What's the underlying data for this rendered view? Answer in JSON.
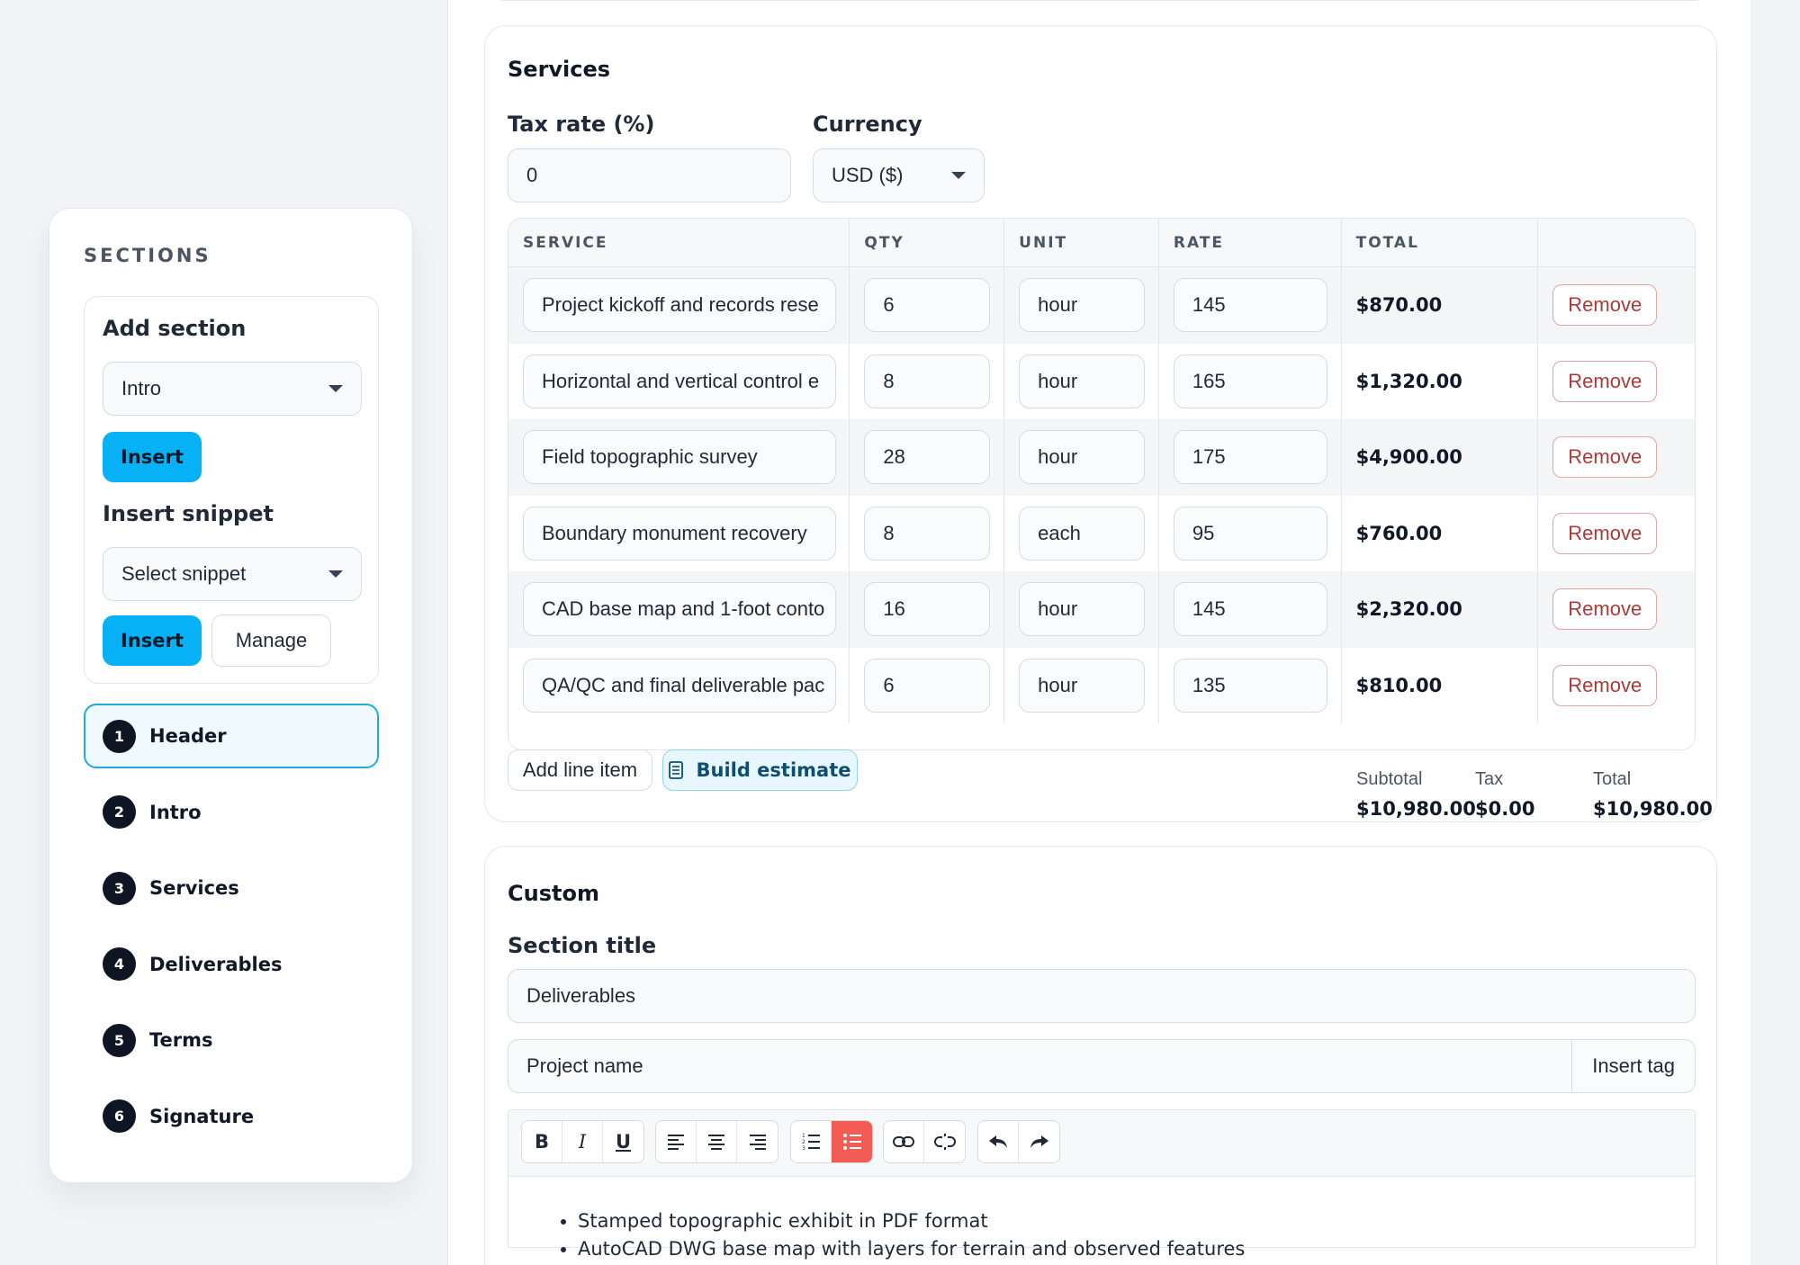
{
  "sidebar": {
    "heading": "SECTIONS",
    "add_section": {
      "label": "Add section",
      "selected": "Intro",
      "insert_label": "Insert"
    },
    "insert_snippet": {
      "label": "Insert snippet",
      "placeholder": "Select snippet",
      "insert_label": "Insert",
      "manage_label": "Manage"
    },
    "items": [
      {
        "num": "1",
        "label": "Header"
      },
      {
        "num": "2",
        "label": "Intro"
      },
      {
        "num": "3",
        "label": "Services"
      },
      {
        "num": "4",
        "label": "Deliverables"
      },
      {
        "num": "5",
        "label": "Terms"
      },
      {
        "num": "6",
        "label": "Signature"
      }
    ]
  },
  "services": {
    "title": "Services",
    "tax_label": "Tax rate (%)",
    "tax_value": "0",
    "currency_label": "Currency",
    "currency_value": "USD ($)",
    "columns": [
      "SERVICE",
      "QTY",
      "UNIT",
      "RATE",
      "TOTAL",
      ""
    ],
    "rows": [
      {
        "service": "Project kickoff and records rese",
        "qty": "6",
        "unit": "hour",
        "rate": "145",
        "total": "$870.00",
        "action": "Remove"
      },
      {
        "service": "Horizontal and vertical control e",
        "qty": "8",
        "unit": "hour",
        "rate": "165",
        "total": "$1,320.00",
        "action": "Remove"
      },
      {
        "service": "Field topographic survey",
        "qty": "28",
        "unit": "hour",
        "rate": "175",
        "total": "$4,900.00",
        "action": "Remove"
      },
      {
        "service": "Boundary monument recovery",
        "qty": "8",
        "unit": "each",
        "rate": "95",
        "total": "$760.00",
        "action": "Remove"
      },
      {
        "service": "CAD base map and 1-foot conto",
        "qty": "16",
        "unit": "hour",
        "rate": "145",
        "total": "$2,320.00",
        "action": "Remove"
      },
      {
        "service": "QA/QC and final deliverable pac",
        "qty": "6",
        "unit": "hour",
        "rate": "135",
        "total": "$810.00",
        "action": "Remove"
      }
    ],
    "add_line_label": "Add line item",
    "build_estimate_label": "Build estimate",
    "subtotal_label": "Subtotal",
    "subtotal_value": "$10,980.00",
    "tax_sum_label": "Tax",
    "tax_sum_value": "$0.00",
    "total_label": "Total",
    "total_value": "$10,980.00"
  },
  "custom": {
    "title": "Custom",
    "section_title_label": "Section title",
    "section_title_value": "Deliverables",
    "tag_value": "Project name",
    "insert_tag_label": "Insert tag",
    "toolbar": {
      "bold": "B",
      "italic": "I",
      "underline": "U"
    },
    "content": [
      "Stamped topographic exhibit in PDF format",
      "AutoCAD DWG base map with layers for terrain and observed features"
    ]
  },
  "colors": {
    "accent": "#06b2f5",
    "active_list": "#f25c54",
    "remove": "#b13838"
  }
}
